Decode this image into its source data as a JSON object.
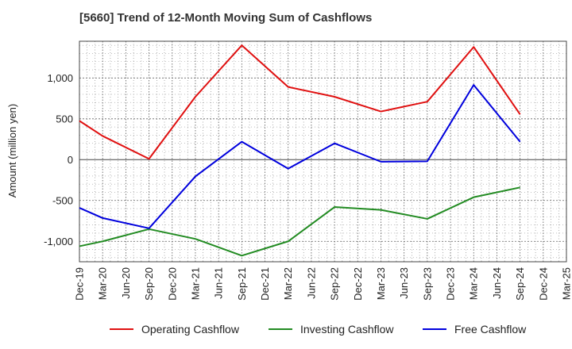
{
  "chart_data": {
    "type": "line",
    "title": "[5660]  Trend of 12-Month Moving Sum of Cashflows",
    "xlabel": "",
    "ylabel": "Amount (million yen)",
    "ylim": [
      -1250,
      1450
    ],
    "yticks": [
      -1000,
      -500,
      0,
      500,
      1000
    ],
    "ytick_labels": [
      "-1,000",
      "-500",
      "0",
      "500",
      "1,000"
    ],
    "categories": [
      "Dec-19",
      "Mar-20",
      "Jun-20",
      "Sep-20",
      "Dec-20",
      "Mar-21",
      "Jun-21",
      "Sep-21",
      "Dec-21",
      "Mar-22",
      "Jun-22",
      "Sep-22",
      "Dec-22",
      "Mar-23",
      "Jun-23",
      "Sep-23",
      "Dec-23",
      "Mar-24",
      "Jun-24",
      "Sep-24",
      "Dec-24",
      "Mar-25"
    ],
    "grid": true,
    "legend_position": "bottom",
    "series": [
      {
        "name": "Operating Cashflow",
        "color": "#e01010",
        "values": [
          475,
          290,
          null,
          10,
          null,
          770,
          null,
          1400,
          null,
          890,
          null,
          770,
          null,
          590,
          null,
          710,
          null,
          1380,
          null,
          555,
          null,
          null
        ]
      },
      {
        "name": "Investing Cashflow",
        "color": "#228b22",
        "values": [
          -1060,
          -1000,
          null,
          -850,
          null,
          -970,
          null,
          -1175,
          null,
          -1000,
          null,
          -580,
          null,
          -615,
          null,
          -725,
          null,
          -460,
          null,
          -340,
          null,
          null
        ]
      },
      {
        "name": "Free Cashflow",
        "color": "#0000dd",
        "values": [
          -590,
          -715,
          null,
          -840,
          null,
          -205,
          null,
          220,
          null,
          -110,
          null,
          200,
          null,
          -25,
          null,
          -20,
          null,
          915,
          null,
          220,
          null,
          null
        ]
      }
    ]
  }
}
